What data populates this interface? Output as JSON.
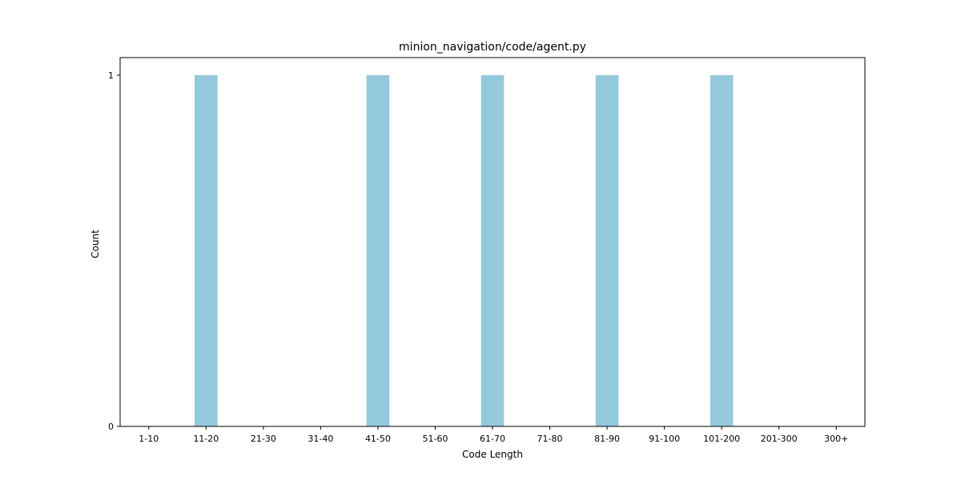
{
  "chart_data": {
    "type": "bar",
    "title": "minion_navigation/code/agent.py",
    "xlabel": "Code Length",
    "ylabel": "Count",
    "categories": [
      "1-10",
      "11-20",
      "21-30",
      "31-40",
      "41-50",
      "51-60",
      "61-70",
      "71-80",
      "81-90",
      "91-100",
      "101-200",
      "201-300",
      "300+"
    ],
    "values": [
      0,
      1,
      0,
      0,
      1,
      0,
      1,
      0,
      1,
      0,
      1,
      0,
      0
    ],
    "ylim": [
      0,
      1.05
    ],
    "yticks": [
      0,
      1
    ],
    "ytick_labels": [
      "0",
      "1"
    ],
    "grid": false,
    "bar_color": "#95c9dc"
  }
}
